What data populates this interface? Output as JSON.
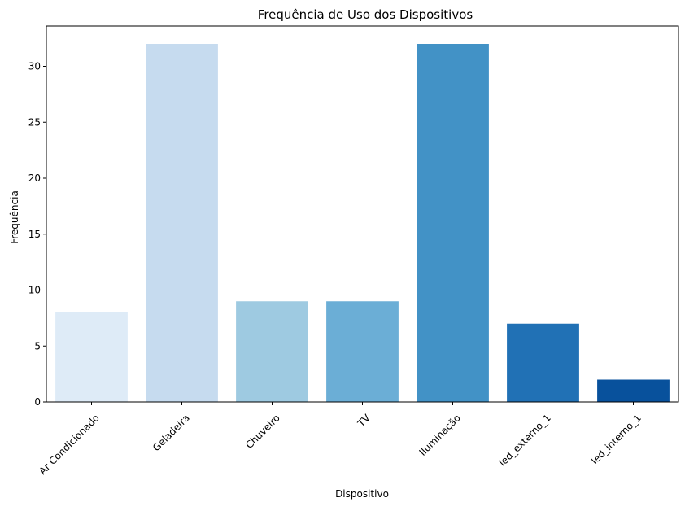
{
  "chart_data": {
    "type": "bar",
    "title": "Frequência de Uso dos Dispositivos",
    "xlabel": "Dispositivo",
    "ylabel": "Frequência",
    "categories": [
      "Ar Condicionado",
      "Geladeira",
      "Chuveiro",
      "TV",
      "Iluminação",
      "led_externo_1",
      "led_interno_1"
    ],
    "values": [
      8,
      32,
      9,
      9,
      32,
      7,
      2
    ],
    "colors": [
      "#deebf7",
      "#c6dbef",
      "#9ecae1",
      "#6baed6",
      "#4292c6",
      "#2171b5",
      "#08519c"
    ],
    "ylim": [
      0,
      33.6
    ],
    "yticks": [
      0,
      5,
      10,
      15,
      20,
      25,
      30
    ],
    "grid": false,
    "legend": "none"
  }
}
